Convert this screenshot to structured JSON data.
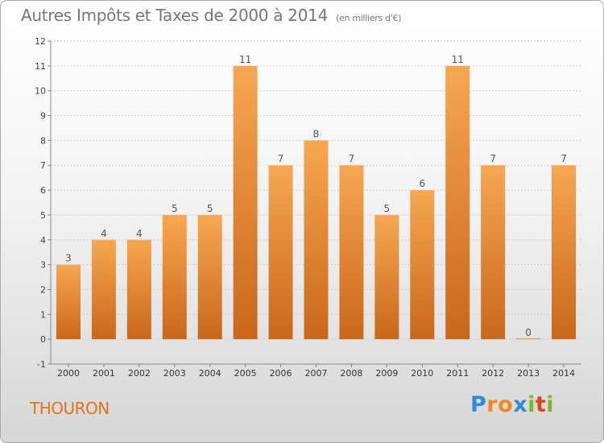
{
  "header": {
    "title": "Autres Impôts et Taxes de 2000 à 2014",
    "subtitle": "(en milliers d'€)"
  },
  "footer": {
    "commune": "THOURON",
    "logo_letters": [
      "P",
      "r",
      "o",
      "x",
      "i",
      "t",
      "i"
    ],
    "logo_colors": [
      "#2c8fd6",
      "#f08a1c",
      "#f08a1c",
      "#2c8fd6",
      "#79b928",
      "#e0421b",
      "#79b928"
    ]
  },
  "colors": {
    "bar_light": "#f7a752",
    "bar_dark": "#c9671a",
    "grid": "#cfcfcf",
    "axis": "#888888",
    "title": "#777777",
    "commune": "#e0741b"
  },
  "chart_data": {
    "type": "bar",
    "categories": [
      "2000",
      "2001",
      "2002",
      "2003",
      "2004",
      "2005",
      "2006",
      "2007",
      "2008",
      "2009",
      "2010",
      "2011",
      "2012",
      "2013",
      "2014"
    ],
    "values": [
      3,
      4,
      4,
      5,
      5,
      11,
      7,
      8,
      7,
      5,
      6,
      11,
      7,
      0,
      7
    ],
    "data_labels": [
      "3",
      "4",
      "4",
      "5",
      "5",
      "11",
      "7",
      "8",
      "7",
      "5",
      "6",
      "11",
      "7",
      "0",
      "7"
    ],
    "ylim": [
      -1,
      12
    ],
    "y_ticks": [
      -1,
      0,
      1,
      2,
      3,
      4,
      5,
      6,
      7,
      8,
      9,
      10,
      11,
      12
    ],
    "grid": true,
    "title": "Autres Impôts et Taxes de 2000 à 2014",
    "xlabel": "",
    "ylabel": ""
  }
}
